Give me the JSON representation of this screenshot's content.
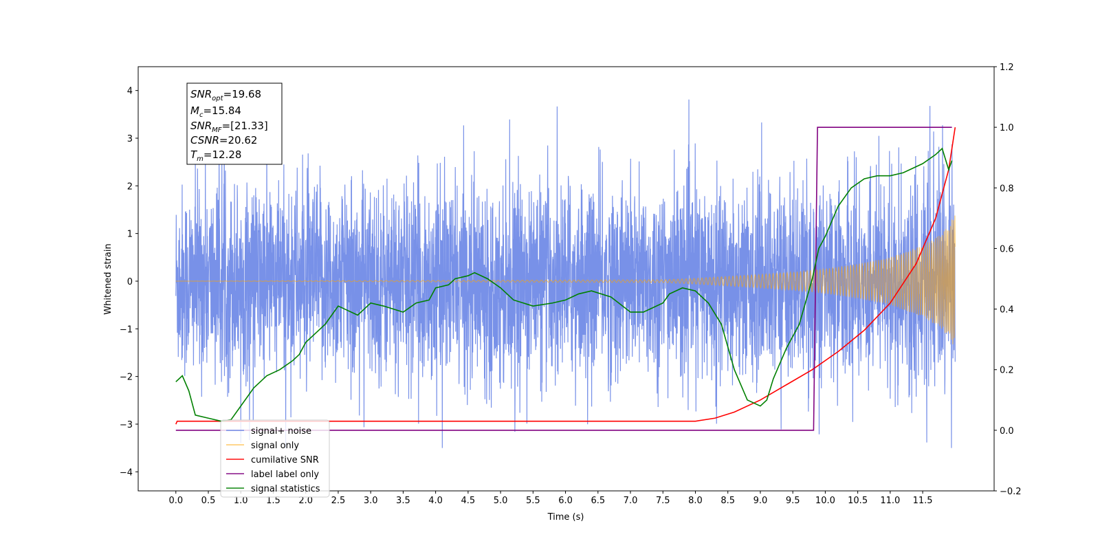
{
  "chart_data": {
    "type": "line",
    "xlabel": "Time (s)",
    "ylabel": "Whitened strain",
    "xlim": [
      -0.58,
      12.6
    ],
    "ylim": [
      -4.4,
      4.5
    ],
    "ylim_right": [
      -0.2,
      1.2
    ],
    "x_ticks": [
      "0.0",
      "0.5",
      "1.0",
      "1.5",
      "2.0",
      "2.5",
      "3.0",
      "3.5",
      "4.0",
      "4.5",
      "5.0",
      "5.5",
      "6.0",
      "6.5",
      "7.0",
      "7.5",
      "8.0",
      "8.5",
      "9.0",
      "9.5",
      "10.0",
      "10.5",
      "11.0",
      "11.5"
    ],
    "y_ticks": [
      "−4",
      "−3",
      "−2",
      "−1",
      "0",
      "1",
      "2",
      "3",
      "4"
    ],
    "y_right_ticks": [
      "−0.2",
      "0.0",
      "0.2",
      "0.4",
      "0.6",
      "0.8",
      "1.0",
      "1.2"
    ],
    "grid": false,
    "legend_placement": "lower-left",
    "legend": [
      {
        "label": "signal+ noise",
        "color": "#6985e6"
      },
      {
        "label": "signal only",
        "color": "#ffa500"
      },
      {
        "label": "cumilative SNR",
        "color": "#ff0000"
      },
      {
        "label": "label",
        "color": "#800080"
      },
      {
        "label": "signal statistics",
        "color": "#008000"
      }
    ],
    "legend_overlap_text": "label only",
    "annotation": {
      "lines": [
        {
          "sym": "SNR",
          "sub": "opt",
          "value": "=19.68"
        },
        {
          "sym": "M",
          "sub": "c",
          "value": "=15.84"
        },
        {
          "sym": "SNR",
          "sub": "MF",
          "value": "=[21.33]"
        },
        {
          "sym": "CSNR",
          "sub": "",
          "value": "=20.62"
        },
        {
          "sym": "T",
          "sub": "m",
          "value": "=12.28"
        }
      ]
    },
    "series": [
      {
        "name": "signal+ noise",
        "axis": "left",
        "color": "#6985e6",
        "t_start": 0.0,
        "t_end": 12.0,
        "noise_sigma": 1.0,
        "spike_max": [
          2.6,
          4.1
        ],
        "spike_min": [
          -3.5,
          -3.4
        ]
      },
      {
        "name": "signal only",
        "axis": "left",
        "color": "#ffa500",
        "envelope": {
          "t": [
            0.0,
            7.5,
            8.0,
            8.5,
            9.0,
            9.5,
            10.0,
            10.5,
            11.0,
            11.5,
            11.8,
            12.0
          ],
          "amp": [
            0.0,
            0.03,
            0.06,
            0.1,
            0.14,
            0.19,
            0.26,
            0.36,
            0.5,
            0.75,
            1.0,
            1.4
          ]
        }
      },
      {
        "name": "cumilative SNR",
        "axis": "right",
        "color": "#ff0000",
        "x": [
          0.0,
          0.02,
          8.0,
          8.3,
          8.6,
          9.0,
          9.4,
          9.8,
          10.2,
          10.6,
          11.0,
          11.4,
          11.7,
          11.9,
          12.0
        ],
        "y": [
          0.02,
          0.03,
          0.03,
          0.04,
          0.06,
          0.1,
          0.15,
          0.2,
          0.26,
          0.33,
          0.42,
          0.55,
          0.7,
          0.86,
          1.0
        ]
      },
      {
        "name": "label",
        "axis": "right",
        "color": "#800080",
        "x": [
          0.0,
          9.82,
          9.88,
          11.95
        ],
        "y": [
          0.0,
          0.0,
          1.0,
          1.0
        ]
      },
      {
        "name": "signal statistics",
        "axis": "right",
        "color": "#008000",
        "x": [
          0.0,
          0.1,
          0.2,
          0.3,
          0.5,
          0.7,
          0.85,
          1.0,
          1.2,
          1.4,
          1.6,
          1.8,
          1.9,
          2.0,
          2.2,
          2.3,
          2.5,
          2.6,
          2.8,
          2.9,
          3.0,
          3.2,
          3.5,
          3.7,
          3.9,
          4.0,
          4.2,
          4.3,
          4.5,
          4.6,
          4.8,
          5.0,
          5.2,
          5.5,
          5.8,
          6.0,
          6.2,
          6.4,
          6.7,
          7.0,
          7.2,
          7.5,
          7.6,
          7.8,
          8.0,
          8.2,
          8.4,
          8.6,
          8.8,
          9.0,
          9.1,
          9.2,
          9.4,
          9.6,
          9.8,
          9.9,
          10.0,
          10.2,
          10.4,
          10.6,
          10.8,
          11.0,
          11.2,
          11.5,
          11.7,
          11.8,
          11.9,
          11.95
        ],
        "y": [
          0.16,
          0.18,
          0.13,
          0.05,
          0.04,
          0.03,
          0.035,
          0.08,
          0.14,
          0.18,
          0.2,
          0.23,
          0.25,
          0.29,
          0.33,
          0.35,
          0.41,
          0.4,
          0.38,
          0.4,
          0.42,
          0.41,
          0.39,
          0.42,
          0.43,
          0.47,
          0.48,
          0.5,
          0.51,
          0.52,
          0.5,
          0.47,
          0.43,
          0.41,
          0.42,
          0.43,
          0.45,
          0.46,
          0.44,
          0.39,
          0.39,
          0.42,
          0.45,
          0.47,
          0.46,
          0.42,
          0.35,
          0.2,
          0.1,
          0.08,
          0.1,
          0.17,
          0.27,
          0.35,
          0.5,
          0.6,
          0.64,
          0.74,
          0.8,
          0.83,
          0.84,
          0.84,
          0.85,
          0.88,
          0.91,
          0.93,
          0.86,
          0.89
        ]
      }
    ]
  }
}
